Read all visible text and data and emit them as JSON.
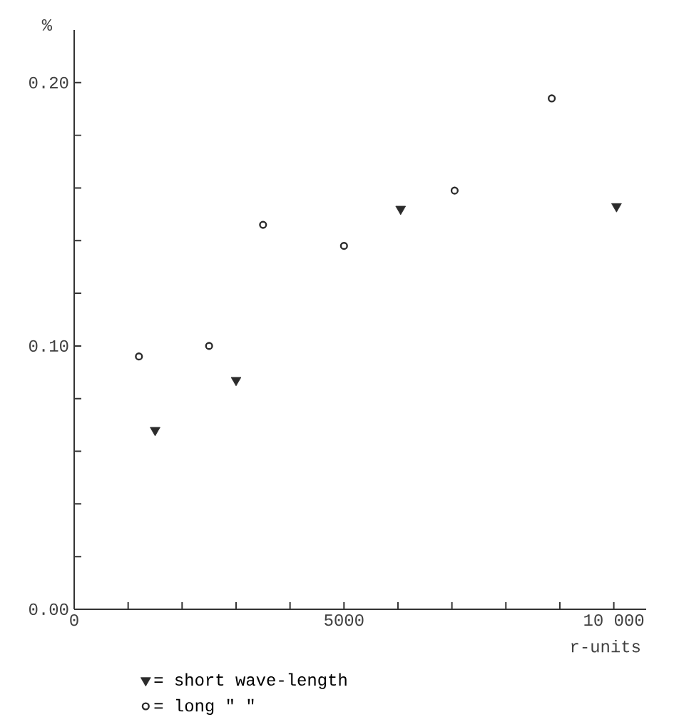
{
  "chart_data": {
    "type": "scatter",
    "ylabel": "%",
    "xlabel": "r-units",
    "xlim": [
      0,
      10600
    ],
    "ylim": [
      0,
      0.22
    ],
    "xticks": [
      0,
      {
        "value": 1000,
        "label": null
      },
      {
        "value": 2000,
        "label": null
      },
      {
        "value": 3000,
        "label": null
      },
      {
        "value": 4000,
        "label": null
      },
      5000,
      {
        "value": 6000,
        "label": null
      },
      {
        "value": 7000,
        "label": null
      },
      {
        "value": 8000,
        "label": null
      },
      {
        "value": 9000,
        "label": null
      },
      {
        "value": 10000,
        "label": "10 000"
      }
    ],
    "yticks": [
      {
        "value": 0,
        "label": "0.00"
      },
      {
        "value": 0.02,
        "label": null
      },
      {
        "value": 0.04,
        "label": null
      },
      {
        "value": 0.06,
        "label": null
      },
      {
        "value": 0.08,
        "label": null
      },
      {
        "value": 0.1,
        "label": "0.10"
      },
      {
        "value": 0.12,
        "label": null
      },
      {
        "value": 0.14,
        "label": null
      },
      {
        "value": 0.16,
        "label": null
      },
      {
        "value": 0.18,
        "label": null
      },
      {
        "value": 0.2,
        "label": "0.20"
      }
    ],
    "legend": "bottom",
    "grid": false,
    "series": [
      {
        "name": "= short wave-length",
        "color": "#2b2b2b",
        "marker": "triangle",
        "x": [
          1500,
          3000,
          6050,
          10050
        ],
        "values": [
          0.068,
          0.087,
          0.152,
          0.153
        ]
      },
      {
        "name": "= long \"      \"",
        "color": "#2b2b2b",
        "marker": "circle",
        "x": [
          1200,
          2500,
          3500,
          5000,
          7050,
          8850
        ],
        "values": [
          0.096,
          0.1,
          0.146,
          0.138,
          0.159,
          0.194
        ]
      }
    ]
  }
}
